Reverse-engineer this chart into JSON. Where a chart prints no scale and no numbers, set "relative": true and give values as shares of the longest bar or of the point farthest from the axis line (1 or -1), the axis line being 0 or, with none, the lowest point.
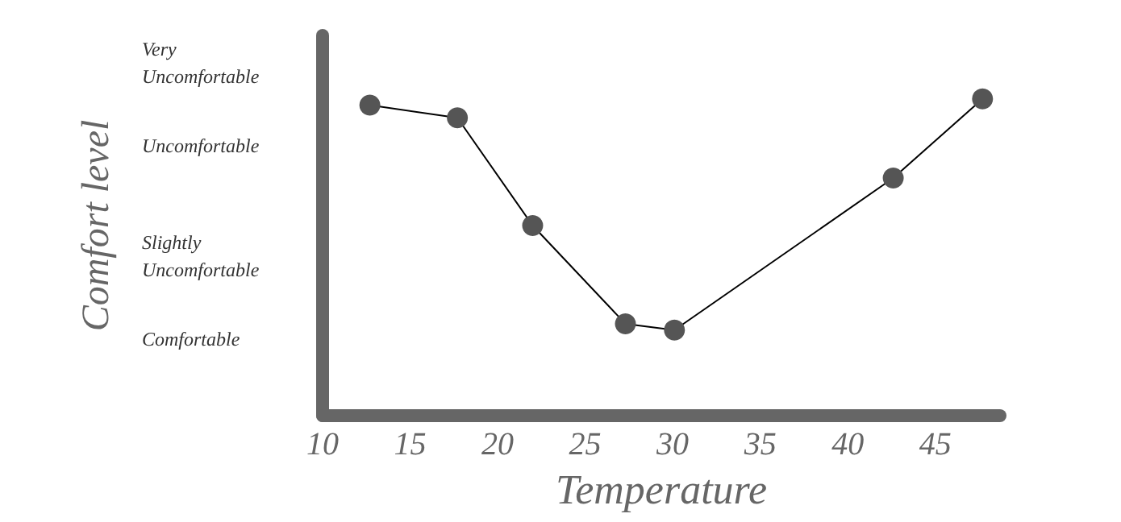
{
  "chart_data": {
    "type": "line",
    "xlabel": "Temperature",
    "ylabel": "Comfort level",
    "relative": true,
    "x": [
      12.7,
      17.7,
      22,
      27.3,
      30.1,
      42.6,
      47.7
    ],
    "series": [
      {
        "color": "#555555",
        "values": [
          0.98,
          0.94,
          0.6,
          0.29,
          0.27,
          0.75,
          1
        ]
      }
    ],
    "xlim": [
      10,
      48.7
    ],
    "xticks": [
      10,
      15,
      20,
      25,
      30,
      35,
      40,
      45
    ],
    "annotations": [
      "Very Uncomfortable",
      "Uncomfortable",
      "Slightly Uncomfortable",
      "Comfortable"
    ],
    "grid": false,
    "marker": "circle",
    "line_style": "solid"
  }
}
